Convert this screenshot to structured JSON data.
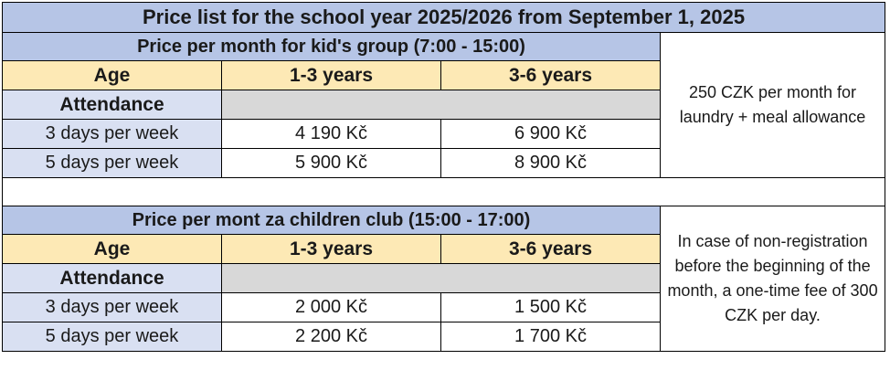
{
  "title": "Price list for the school year 2025/2026 from September 1, 2025",
  "sections": [
    {
      "heading": "Price per month for kid's group (7:00 - 15:00)",
      "age_label": "Age",
      "age_groups": [
        "1-3 years",
        "3-6 years"
      ],
      "attendance_label": "Attendance",
      "rows": [
        {
          "label": "3 days per week",
          "prices": [
            "4 190 Kč",
            "6 900 Kč"
          ]
        },
        {
          "label": "5 days per week",
          "prices": [
            "5 900 Kč",
            "8 900 Kč"
          ]
        }
      ],
      "note": "250 CZK per month for laundry + meal allowance"
    },
    {
      "heading": "Price per mont za children club (15:00 - 17:00)",
      "age_label": "Age",
      "age_groups": [
        "1-3 years",
        "3-6 years"
      ],
      "attendance_label": "Attendance",
      "rows": [
        {
          "label": "3 days per week",
          "prices": [
            "2 000 Kč",
            "1 500 Kč"
          ]
        },
        {
          "label": "5 days per week",
          "prices": [
            "2 200 Kč",
            "1 700 Kč"
          ]
        }
      ],
      "note": "In case of non-registration before the beginning of the month, a one-time fee of 300 CZK per day."
    }
  ],
  "colors": {
    "title_bg": "#b6c5e6",
    "age_header_bg": "#fde9b5",
    "row_label_bg": "#d9e0f2",
    "attendance_fill_bg": "#d8d8d8"
  }
}
